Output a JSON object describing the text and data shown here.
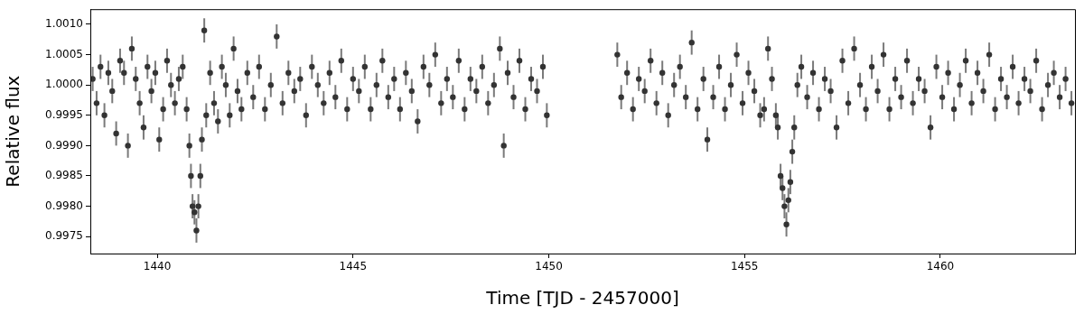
{
  "chart_data": {
    "type": "scatter",
    "xlabel": "Time [TJD - 2457000]",
    "ylabel": "Relative flux",
    "x": [
      1438.35,
      1438.45,
      1438.55,
      1438.65,
      1438.75,
      1438.85,
      1438.95,
      1439.05,
      1439.15,
      1439.25,
      1439.35,
      1439.45,
      1439.55,
      1439.65,
      1439.75,
      1439.85,
      1439.95,
      1440.05,
      1440.15,
      1440.25,
      1440.35,
      1440.45,
      1440.55,
      1440.65,
      1440.75,
      1440.82,
      1440.86,
      1440.9,
      1440.95,
      1441.0,
      1441.05,
      1441.1,
      1441.14,
      1441.2,
      1441.25,
      1441.35,
      1441.45,
      1441.55,
      1441.65,
      1441.75,
      1441.85,
      1441.95,
      1442.05,
      1442.15,
      1442.3,
      1442.45,
      1442.6,
      1442.75,
      1442.9,
      1443.05,
      1443.2,
      1443.35,
      1443.5,
      1443.65,
      1443.8,
      1443.95,
      1444.1,
      1444.25,
      1444.4,
      1444.55,
      1444.7,
      1444.85,
      1445.0,
      1445.15,
      1445.3,
      1445.45,
      1445.6,
      1445.75,
      1445.9,
      1446.05,
      1446.2,
      1446.35,
      1446.5,
      1446.65,
      1446.8,
      1446.95,
      1447.1,
      1447.25,
      1447.4,
      1447.55,
      1447.7,
      1447.85,
      1448.0,
      1448.15,
      1448.3,
      1448.45,
      1448.6,
      1448.75,
      1448.85,
      1448.95,
      1449.1,
      1449.25,
      1449.4,
      1449.55,
      1449.7,
      1449.85,
      1449.95,
      1451.75,
      1451.85,
      1452.0,
      1452.15,
      1452.3,
      1452.45,
      1452.6,
      1452.75,
      1452.9,
      1453.05,
      1453.2,
      1453.35,
      1453.5,
      1453.65,
      1453.8,
      1453.95,
      1454.05,
      1454.2,
      1454.35,
      1454.5,
      1454.65,
      1454.8,
      1454.95,
      1455.1,
      1455.25,
      1455.4,
      1455.5,
      1455.6,
      1455.7,
      1455.8,
      1455.85,
      1455.92,
      1455.97,
      1456.02,
      1456.07,
      1456.12,
      1456.17,
      1456.22,
      1456.27,
      1456.35,
      1456.45,
      1456.6,
      1456.75,
      1456.9,
      1457.05,
      1457.2,
      1457.35,
      1457.5,
      1457.65,
      1457.8,
      1457.95,
      1458.1,
      1458.25,
      1458.4,
      1458.55,
      1458.7,
      1458.85,
      1459.0,
      1459.15,
      1459.3,
      1459.45,
      1459.6,
      1459.75,
      1459.9,
      1460.05,
      1460.2,
      1460.35,
      1460.5,
      1460.65,
      1460.8,
      1460.95,
      1461.1,
      1461.25,
      1461.4,
      1461.55,
      1461.7,
      1461.85,
      1462.0,
      1462.15,
      1462.3,
      1462.45,
      1462.6,
      1462.75,
      1462.9,
      1463.05,
      1463.2,
      1463.35
    ],
    "series": [
      {
        "color": "#333333",
        "values": [
          1.0001,
          0.9997,
          1.0003,
          0.9995,
          1.0002,
          0.9999,
          0.9992,
          1.0004,
          1.0002,
          0.999,
          1.0006,
          1.0001,
          0.9997,
          0.9993,
          1.0003,
          0.9999,
          1.0002,
          0.9991,
          0.9996,
          1.0004,
          1.0,
          0.9997,
          1.0001,
          1.0003,
          0.9996,
          0.999,
          0.9985,
          0.998,
          0.9979,
          0.9976,
          0.998,
          0.9985,
          0.9991,
          1.0009,
          0.9995,
          1.0002,
          0.9997,
          0.9994,
          1.0003,
          1.0,
          0.9995,
          1.0006,
          0.9999,
          0.9996,
          1.0002,
          0.9998,
          1.0003,
          0.9996,
          1.0,
          1.0008,
          0.9997,
          1.0002,
          0.9999,
          1.0001,
          0.9995,
          1.0003,
          1.0,
          0.9997,
          1.0002,
          0.9998,
          1.0004,
          0.9996,
          1.0001,
          0.9999,
          1.0003,
          0.9996,
          1.0,
          1.0004,
          0.9998,
          1.0001,
          0.9996,
          1.0002,
          0.9999,
          0.9994,
          1.0003,
          1.0,
          1.0005,
          0.9997,
          1.0001,
          0.9998,
          1.0004,
          0.9996,
          1.0001,
          0.9999,
          1.0003,
          0.9997,
          1.0,
          1.0006,
          0.999,
          1.0002,
          0.9998,
          1.0004,
          0.9996,
          1.0001,
          0.9999,
          1.0003,
          0.9995,
          1.0005,
          0.9998,
          1.0002,
          0.9996,
          1.0001,
          0.9999,
          1.0004,
          0.9997,
          1.0002,
          0.9995,
          1.0,
          1.0003,
          0.9998,
          1.0007,
          0.9996,
          1.0001,
          0.9991,
          0.9998,
          1.0003,
          0.9996,
          1.0,
          1.0005,
          0.9997,
          1.0002,
          0.9999,
          0.9995,
          0.9996,
          1.0006,
          1.0001,
          0.9995,
          0.9993,
          0.9985,
          0.9983,
          0.998,
          0.9977,
          0.9981,
          0.9984,
          0.9989,
          0.9993,
          1.0,
          1.0003,
          0.9998,
          1.0002,
          0.9996,
          1.0001,
          0.9999,
          0.9993,
          1.0004,
          0.9997,
          1.0006,
          1.0,
          0.9996,
          1.0003,
          0.9999,
          1.0005,
          0.9996,
          1.0001,
          0.9998,
          1.0004,
          0.9997,
          1.0001,
          0.9999,
          0.9993,
          1.0003,
          0.9998,
          1.0002,
          0.9996,
          1.0,
          1.0004,
          0.9997,
          1.0002,
          0.9999,
          1.0005,
          0.9996,
          1.0001,
          0.9998,
          1.0003,
          0.9997,
          1.0001,
          0.9999,
          1.0004,
          0.9996,
          1.0,
          1.0002,
          0.9998,
          1.0001,
          0.9997
        ],
        "errors": [
          0.0002,
          0.0002,
          0.0002,
          0.0002,
          0.0002,
          0.0002,
          0.0002,
          0.0002,
          0.0002,
          0.0002,
          0.0002,
          0.0002,
          0.0002,
          0.0002,
          0.0002,
          0.0002,
          0.0002,
          0.0002,
          0.0002,
          0.0002,
          0.0002,
          0.0002,
          0.0002,
          0.0002,
          0.0002,
          0.0002,
          0.0002,
          0.0002,
          0.0002,
          0.0002,
          0.0002,
          0.0002,
          0.0002,
          0.0002,
          0.0002,
          0.0002,
          0.0002,
          0.0002,
          0.0002,
          0.0002,
          0.0002,
          0.0002,
          0.0002,
          0.0002,
          0.0002,
          0.0002,
          0.0002,
          0.0002,
          0.0002,
          0.0002,
          0.0002,
          0.0002,
          0.0002,
          0.0002,
          0.0002,
          0.0002,
          0.0002,
          0.0002,
          0.0002,
          0.0002,
          0.0002,
          0.0002,
          0.0002,
          0.0002,
          0.0002,
          0.0002,
          0.0002,
          0.0002,
          0.0002,
          0.0002,
          0.0002,
          0.0002,
          0.0002,
          0.0002,
          0.0002,
          0.0002,
          0.0002,
          0.0002,
          0.0002,
          0.0002,
          0.0002,
          0.0002,
          0.0002,
          0.0002,
          0.0002,
          0.0002,
          0.0002,
          0.0002,
          0.0002,
          0.0002,
          0.0002,
          0.0002,
          0.0002,
          0.0002,
          0.0002,
          0.0002,
          0.0002,
          0.0002,
          0.0002,
          0.0002,
          0.0002,
          0.0002,
          0.0002,
          0.0002,
          0.0002,
          0.0002,
          0.0002,
          0.0002,
          0.0002,
          0.0002,
          0.0002,
          0.0002,
          0.0002,
          0.0002,
          0.0002,
          0.0002,
          0.0002,
          0.0002,
          0.0002,
          0.0002,
          0.0002,
          0.0002,
          0.0002,
          0.0002,
          0.0002,
          0.0002,
          0.0002,
          0.0002,
          0.0002,
          0.0002,
          0.0002,
          0.0002,
          0.0002,
          0.0002,
          0.0002,
          0.0002,
          0.0002,
          0.0002,
          0.0002,
          0.0002,
          0.0002,
          0.0002,
          0.0002,
          0.0002,
          0.0002,
          0.0002,
          0.0002,
          0.0002,
          0.0002,
          0.0002,
          0.0002,
          0.0002,
          0.0002,
          0.0002,
          0.0002,
          0.0002,
          0.0002,
          0.0002,
          0.0002,
          0.0002,
          0.0002,
          0.0002,
          0.0002,
          0.0002,
          0.0002,
          0.0002,
          0.0002,
          0.0002,
          0.0002,
          0.0002,
          0.0002,
          0.0002,
          0.0002,
          0.0002,
          0.0002,
          0.0002,
          0.0002,
          0.0002,
          0.0002,
          0.0002,
          0.0002,
          0.0002,
          0.0002,
          0.0002
        ]
      }
    ],
    "xlim": [
      1438.29,
      1463.44
    ],
    "ylim": [
      0.99722,
      1.00125
    ],
    "xticks": [
      1440,
      1445,
      1450,
      1455,
      1460
    ],
    "yticks": [
      {
        "value": 0.9975,
        "label": "0.9975"
      },
      {
        "value": 0.998,
        "label": "0.9980"
      },
      {
        "value": 0.9985,
        "label": "0.9985"
      },
      {
        "value": 0.999,
        "label": "0.9990"
      },
      {
        "value": 0.9995,
        "label": "0.9995"
      },
      {
        "value": 1.0,
        "label": "1.0000"
      },
      {
        "value": 1.0005,
        "label": "1.0005"
      },
      {
        "value": 1.001,
        "label": "1.0010"
      }
    ],
    "grid": false,
    "legend": false,
    "marker": "circle"
  }
}
